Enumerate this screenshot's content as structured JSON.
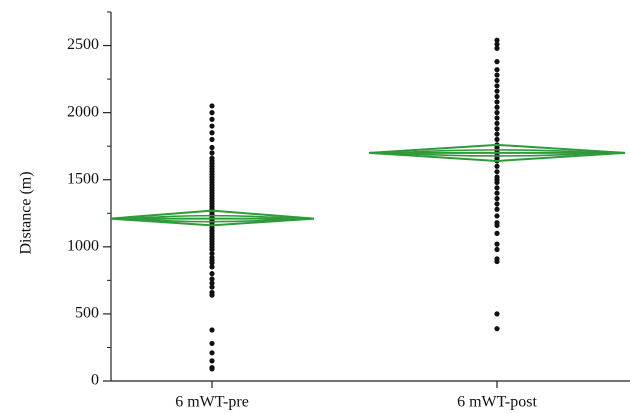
{
  "chart_data": {
    "type": "scatter",
    "title": "",
    "xlabel": "",
    "ylabel": "Distance (m)",
    "categories": [
      "6 mWT-pre",
      "6 mWT-post"
    ],
    "ylim": [
      0,
      2750
    ],
    "yticks": [
      0,
      500,
      1000,
      1500,
      2000,
      2500
    ],
    "grid": false,
    "legend": "none",
    "colors": {
      "points": "#111111",
      "diamond": "#2e9a3a",
      "axis": "#222222"
    },
    "series": [
      {
        "category": "6 mWT-pre",
        "values": [
          90,
          100,
          150,
          210,
          280,
          380,
          640,
          660,
          700,
          730,
          760,
          800,
          850,
          880,
          900,
          920,
          950,
          980,
          1000,
          1020,
          1040,
          1060,
          1080,
          1100,
          1120,
          1140,
          1160,
          1180,
          1200,
          1210,
          1220,
          1240,
          1260,
          1280,
          1300,
          1320,
          1340,
          1360,
          1380,
          1400,
          1420,
          1440,
          1460,
          1480,
          1500,
          1520,
          1540,
          1560,
          1580,
          1600,
          1620,
          1640,
          1660,
          1700,
          1740,
          1800,
          1850,
          1900,
          1950,
          2000,
          2050
        ]
      },
      {
        "category": "6 mWT-post",
        "values": [
          390,
          500,
          890,
          910,
          980,
          1020,
          1100,
          1160,
          1180,
          1230,
          1280,
          1320,
          1360,
          1400,
          1440,
          1480,
          1500,
          1520,
          1560,
          1600,
          1640,
          1660,
          1680,
          1700,
          1720,
          1740,
          1760,
          1800,
          1840,
          1880,
          1920,
          1960,
          2000,
          2040,
          2080,
          2120,
          2160,
          2200,
          2240,
          2280,
          2320,
          2380,
          2480,
          2510,
          2540
        ]
      }
    ],
    "means": [
      {
        "category": "6 mWT-pre",
        "mean": 1210,
        "ci": [
          1160,
          1270
        ],
        "span": [
          1165,
          1255
        ]
      },
      {
        "category": "6 mWT-post",
        "mean": 1700,
        "ci": [
          1640,
          1760
        ],
        "span": [
          1655,
          1745
        ]
      }
    ]
  }
}
